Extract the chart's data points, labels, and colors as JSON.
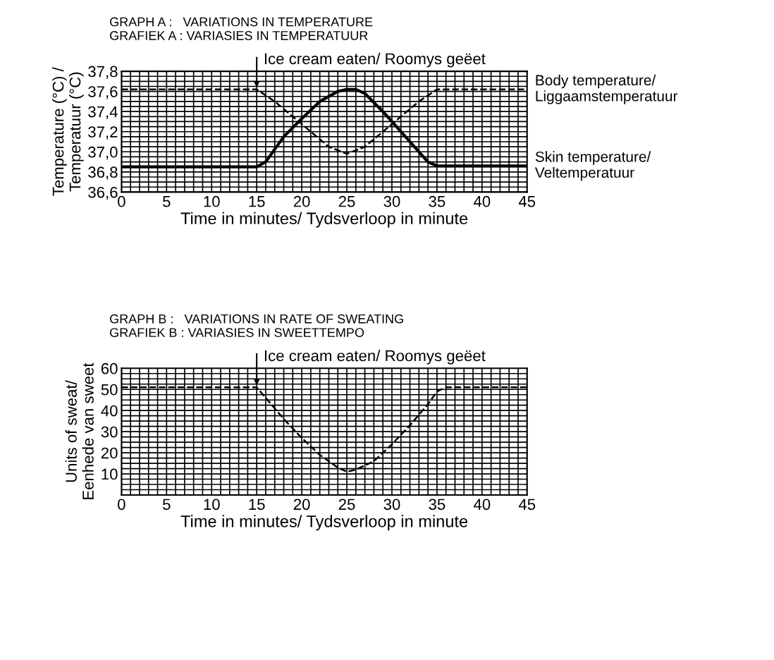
{
  "chart_data": [
    {
      "type": "line",
      "title": "GRAPH A :   VARIATIONS IN TEMPERATURE\nGRAFIEK A : VARIASIES IN TEMPERATUUR",
      "xlabel": "Time in minutes/ Tydsverloop in minute",
      "ylabel": "Temperature (°C) /\nTemperatuur (°C)",
      "xlim": [
        0,
        45
      ],
      "ylim": [
        36.6,
        37.8
      ],
      "xticks": [
        0,
        {
          "value": 1,
          "label": null
        },
        {
          "value": 2,
          "label": null
        },
        {
          "value": 3,
          "label": null
        },
        {
          "value": 4,
          "label": null
        },
        5,
        {
          "value": 6,
          "label": null
        },
        {
          "value": 7,
          "label": null
        },
        {
          "value": 8,
          "label": null
        },
        {
          "value": 9,
          "label": null
        },
        10,
        {
          "value": 11,
          "label": null
        },
        {
          "value": 12,
          "label": null
        },
        {
          "value": 13,
          "label": null
        },
        {
          "value": 14,
          "label": null
        },
        15,
        {
          "value": 16,
          "label": null
        },
        {
          "value": 17,
          "label": null
        },
        {
          "value": 18,
          "label": null
        },
        {
          "value": 19,
          "label": null
        },
        20,
        {
          "value": 21,
          "label": null
        },
        {
          "value": 22,
          "label": null
        },
        {
          "value": 23,
          "label": null
        },
        {
          "value": 24,
          "label": null
        },
        25,
        {
          "value": 26,
          "label": null
        },
        {
          "value": 27,
          "label": null
        },
        {
          "value": 28,
          "label": null
        },
        {
          "value": 29,
          "label": null
        },
        30,
        {
          "value": 31,
          "label": null
        },
        {
          "value": 32,
          "label": null
        },
        {
          "value": 33,
          "label": null
        },
        {
          "value": 34,
          "label": null
        },
        35,
        {
          "value": 36,
          "label": null
        },
        {
          "value": 37,
          "label": null
        },
        {
          "value": 38,
          "label": null
        },
        {
          "value": 39,
          "label": null
        },
        40,
        {
          "value": 41,
          "label": null
        },
        {
          "value": 42,
          "label": null
        },
        {
          "value": 43,
          "label": null
        },
        {
          "value": 44,
          "label": null
        },
        45
      ],
      "yticks": [
        {
          "value": 36.6,
          "label": "36,6"
        },
        {
          "value": 36.65,
          "label": null
        },
        {
          "value": 36.7,
          "label": null
        },
        {
          "value": 36.75,
          "label": null
        },
        {
          "value": 36.8,
          "label": "36,8"
        },
        {
          "value": 36.85,
          "label": null
        },
        {
          "value": 36.9,
          "label": null
        },
        {
          "value": 36.95,
          "label": null
        },
        {
          "value": 37.0,
          "label": "37,0"
        },
        {
          "value": 37.05,
          "label": null
        },
        {
          "value": 37.1,
          "label": null
        },
        {
          "value": 37.15,
          "label": null
        },
        {
          "value": 37.2,
          "label": "37,2"
        },
        {
          "value": 37.25,
          "label": null
        },
        {
          "value": 37.3,
          "label": null
        },
        {
          "value": 37.35,
          "label": null
        },
        {
          "value": 37.4,
          "label": "37,4"
        },
        {
          "value": 37.45,
          "label": null
        },
        {
          "value": 37.5,
          "label": null
        },
        {
          "value": 37.55,
          "label": null
        },
        {
          "value": 37.6,
          "label": "37,6"
        },
        {
          "value": 37.65,
          "label": null
        },
        {
          "value": 37.7,
          "label": null
        },
        {
          "value": 37.75,
          "label": null
        },
        {
          "value": 37.8,
          "label": "37,8"
        }
      ],
      "grid": true,
      "marker": "none",
      "annotations": [
        {
          "text": "Ice cream eaten/ Roomys geëet",
          "x": 15,
          "y": 37.62
        }
      ],
      "series": [
        {
          "name": "Body temperature/\nLiggaamstemperatuur",
          "color": "#000000",
          "line_style": "dashed",
          "x": [
            0,
            15,
            17,
            19,
            21,
            23,
            25,
            27,
            29,
            31,
            33,
            35,
            45
          ],
          "values": [
            37.62,
            37.62,
            37.5,
            37.35,
            37.2,
            37.05,
            36.98,
            37.05,
            37.2,
            37.35,
            37.5,
            37.62,
            37.62
          ]
        },
        {
          "name": "Skin temperature/\nVeltemperatuur",
          "color": "#000000",
          "line_style": "solid",
          "x": [
            0,
            15,
            16,
            18,
            20,
            22,
            24,
            25,
            26,
            27,
            29,
            31,
            33,
            34,
            35,
            45
          ],
          "values": [
            36.85,
            36.85,
            36.9,
            37.15,
            37.33,
            37.5,
            37.6,
            37.62,
            37.62,
            37.58,
            37.4,
            37.2,
            37.0,
            36.9,
            36.86,
            36.86
          ]
        }
      ]
    },
    {
      "type": "line",
      "title": "GRAPH B :   VARIATIONS IN RATE OF SWEATING\nGRAFIEK B : VARIASIES IN SWEETTEMPO",
      "xlabel": "Time in minutes/ Tydsverloop in minute",
      "ylabel": "Units of sweat/\nEenhede van sweet",
      "xlim": [
        0,
        45
      ],
      "ylim": [
        0,
        60
      ],
      "xticks": [
        0,
        {
          "value": 1,
          "label": null
        },
        {
          "value": 2,
          "label": null
        },
        {
          "value": 3,
          "label": null
        },
        {
          "value": 4,
          "label": null
        },
        5,
        {
          "value": 6,
          "label": null
        },
        {
          "value": 7,
          "label": null
        },
        {
          "value": 8,
          "label": null
        },
        {
          "value": 9,
          "label": null
        },
        10,
        {
          "value": 11,
          "label": null
        },
        {
          "value": 12,
          "label": null
        },
        {
          "value": 13,
          "label": null
        },
        {
          "value": 14,
          "label": null
        },
        15,
        {
          "value": 16,
          "label": null
        },
        {
          "value": 17,
          "label": null
        },
        {
          "value": 18,
          "label": null
        },
        {
          "value": 19,
          "label": null
        },
        20,
        {
          "value": 21,
          "label": null
        },
        {
          "value": 22,
          "label": null
        },
        {
          "value": 23,
          "label": null
        },
        {
          "value": 24,
          "label": null
        },
        25,
        {
          "value": 26,
          "label": null
        },
        {
          "value": 27,
          "label": null
        },
        {
          "value": 28,
          "label": null
        },
        {
          "value": 29,
          "label": null
        },
        30,
        {
          "value": 31,
          "label": null
        },
        {
          "value": 32,
          "label": null
        },
        {
          "value": 33,
          "label": null
        },
        {
          "value": 34,
          "label": null
        },
        35,
        {
          "value": 36,
          "label": null
        },
        {
          "value": 37,
          "label": null
        },
        {
          "value": 38,
          "label": null
        },
        {
          "value": 39,
          "label": null
        },
        40,
        {
          "value": 41,
          "label": null
        },
        {
          "value": 42,
          "label": null
        },
        {
          "value": 43,
          "label": null
        },
        {
          "value": 44,
          "label": null
        },
        45
      ],
      "yticks": [
        {
          "value": 0,
          "label": null
        },
        {
          "value": 2.5,
          "label": null
        },
        {
          "value": 5,
          "label": null
        },
        {
          "value": 7.5,
          "label": null
        },
        10,
        {
          "value": 12.5,
          "label": null
        },
        {
          "value": 15,
          "label": null
        },
        {
          "value": 17.5,
          "label": null
        },
        20,
        {
          "value": 22.5,
          "label": null
        },
        {
          "value": 25,
          "label": null
        },
        {
          "value": 27.5,
          "label": null
        },
        30,
        {
          "value": 32.5,
          "label": null
        },
        {
          "value": 35,
          "label": null
        },
        {
          "value": 37.5,
          "label": null
        },
        40,
        {
          "value": 42.5,
          "label": null
        },
        {
          "value": 45,
          "label": null
        },
        {
          "value": 47.5,
          "label": null
        },
        50,
        {
          "value": 52.5,
          "label": null
        },
        {
          "value": 55,
          "label": null
        },
        {
          "value": 57.5,
          "label": null
        },
        60
      ],
      "grid": true,
      "marker": "none",
      "annotations": [
        {
          "text": "Ice cream eaten/ Roomys geëet",
          "x": 15,
          "y": 51
        }
      ],
      "series": [
        {
          "color": "#000000",
          "line_style": "dashed",
          "x": [
            0,
            15,
            16,
            18,
            20,
            22,
            24,
            25,
            26,
            28,
            30,
            32,
            34,
            35,
            36,
            45
          ],
          "values": [
            51,
            51,
            46,
            36,
            27,
            19,
            13,
            11,
            12,
            16,
            24,
            33,
            43,
            49,
            51,
            51
          ]
        }
      ]
    }
  ]
}
